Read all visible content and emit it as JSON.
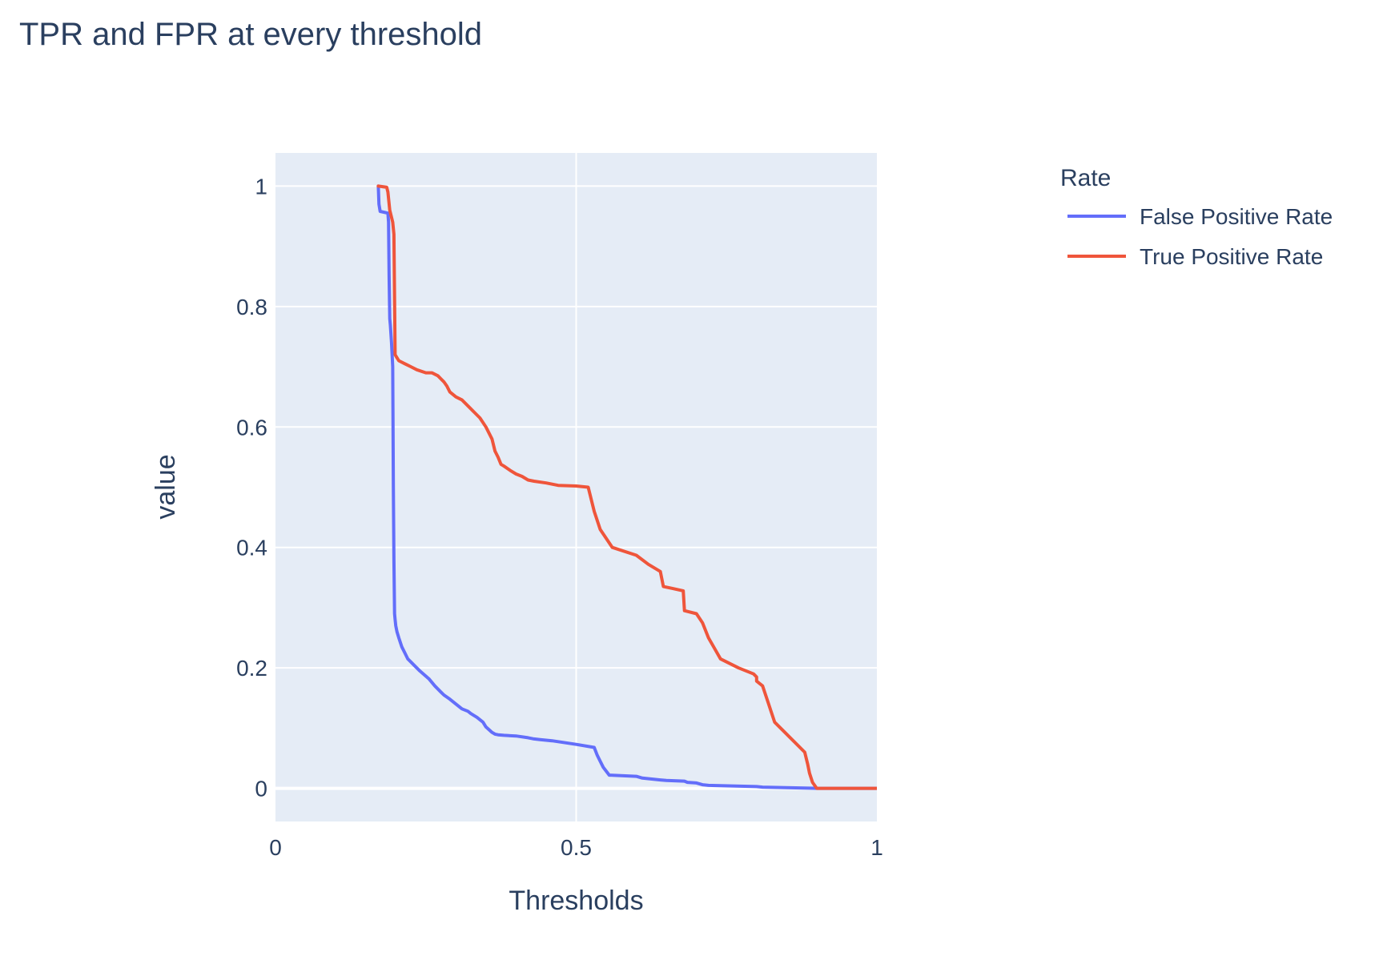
{
  "chart_data": {
    "type": "line",
    "title": "TPR and FPR at every threshold",
    "xlabel": "Thresholds",
    "ylabel": "value",
    "xlim": [
      0,
      1
    ],
    "ylim": [
      -0.055,
      1.055
    ],
    "x_ticks": [
      {
        "value": 0,
        "label": "0"
      },
      {
        "value": 0.5,
        "label": "0.5"
      },
      {
        "value": 1,
        "label": "1"
      }
    ],
    "y_ticks": [
      {
        "value": 0,
        "label": "0"
      },
      {
        "value": 0.2,
        "label": "0.2"
      },
      {
        "value": 0.4,
        "label": "0.4"
      },
      {
        "value": 0.6,
        "label": "0.6"
      },
      {
        "value": 0.8,
        "label": "0.8"
      },
      {
        "value": 1,
        "label": "1"
      }
    ],
    "grid": true,
    "legend_title": "Rate",
    "legend_position": "top-right",
    "plot_bg": "#e5ecf6",
    "series": [
      {
        "name": "False Positive Rate",
        "color": "#636efa",
        "x": [
          0.171,
          0.172,
          0.174,
          0.187,
          0.188,
          0.189,
          0.19,
          0.191,
          0.193,
          0.195,
          0.196,
          0.197,
          0.198,
          0.199,
          0.2,
          0.202,
          0.205,
          0.21,
          0.215,
          0.22,
          0.225,
          0.23,
          0.24,
          0.255,
          0.265,
          0.275,
          0.28,
          0.29,
          0.3,
          0.31,
          0.32,
          0.325,
          0.335,
          0.345,
          0.35,
          0.36,
          0.365,
          0.37,
          0.38,
          0.4,
          0.42,
          0.43,
          0.44,
          0.46,
          0.5,
          0.53,
          0.535,
          0.54,
          0.545,
          0.555,
          0.6,
          0.61,
          0.64,
          0.65,
          0.68,
          0.685,
          0.7,
          0.71,
          0.72,
          0.8,
          0.81,
          0.9,
          1.0
        ],
        "y": [
          1.0,
          0.97,
          0.958,
          0.955,
          0.94,
          0.85,
          0.78,
          0.77,
          0.74,
          0.7,
          0.5,
          0.38,
          0.29,
          0.28,
          0.27,
          0.26,
          0.25,
          0.235,
          0.225,
          0.215,
          0.21,
          0.205,
          0.195,
          0.182,
          0.17,
          0.16,
          0.155,
          0.148,
          0.14,
          0.132,
          0.128,
          0.124,
          0.118,
          0.11,
          0.102,
          0.093,
          0.09,
          0.089,
          0.088,
          0.087,
          0.084,
          0.082,
          0.081,
          0.079,
          0.073,
          0.068,
          0.055,
          0.045,
          0.035,
          0.022,
          0.02,
          0.017,
          0.014,
          0.013,
          0.012,
          0.01,
          0.009,
          0.006,
          0.005,
          0.003,
          0.002,
          0.0,
          0.0
        ]
      },
      {
        "name": "True Positive Rate",
        "color": "#ef553b",
        "x": [
          0.171,
          0.185,
          0.187,
          0.19,
          0.195,
          0.197,
          0.199,
          0.202,
          0.205,
          0.215,
          0.225,
          0.235,
          0.25,
          0.26,
          0.27,
          0.275,
          0.28,
          0.285,
          0.29,
          0.3,
          0.31,
          0.32,
          0.33,
          0.34,
          0.35,
          0.36,
          0.365,
          0.37,
          0.375,
          0.38,
          0.39,
          0.4,
          0.41,
          0.42,
          0.43,
          0.45,
          0.46,
          0.47,
          0.5,
          0.52,
          0.53,
          0.54,
          0.56,
          0.6,
          0.62,
          0.64,
          0.645,
          0.66,
          0.678,
          0.68,
          0.7,
          0.71,
          0.72,
          0.74,
          0.77,
          0.795,
          0.8,
          0.8,
          0.81,
          0.82,
          0.83,
          0.84,
          0.88,
          0.885,
          0.888,
          0.893,
          0.9,
          1.0
        ],
        "y": [
          1.0,
          0.998,
          0.99,
          0.96,
          0.94,
          0.92,
          0.72,
          0.715,
          0.71,
          0.705,
          0.7,
          0.695,
          0.69,
          0.69,
          0.685,
          0.68,
          0.675,
          0.668,
          0.658,
          0.65,
          0.645,
          0.635,
          0.625,
          0.615,
          0.6,
          0.58,
          0.56,
          0.55,
          0.538,
          0.535,
          0.528,
          0.522,
          0.518,
          0.512,
          0.51,
          0.507,
          0.505,
          0.503,
          0.502,
          0.5,
          0.46,
          0.43,
          0.4,
          0.387,
          0.372,
          0.36,
          0.335,
          0.332,
          0.328,
          0.295,
          0.29,
          0.275,
          0.25,
          0.215,
          0.2,
          0.19,
          0.185,
          0.178,
          0.17,
          0.14,
          0.11,
          0.1,
          0.06,
          0.04,
          0.025,
          0.01,
          0.0,
          0.0
        ]
      }
    ]
  }
}
